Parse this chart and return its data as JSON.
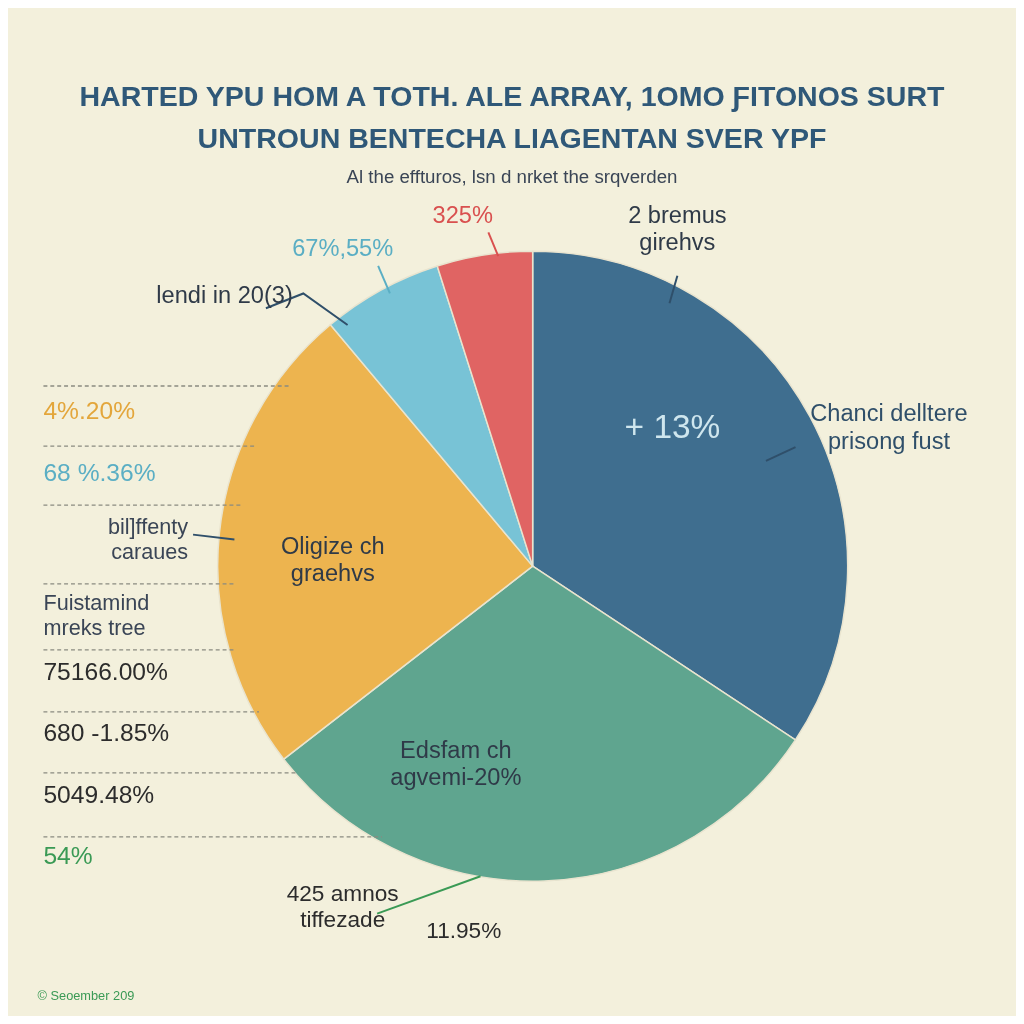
{
  "chart_data": {
    "type": "pie",
    "title": "HARTED YPU HOM A TOTH. ALE ARRAY, 1OMO ƑITONOS SURT UNTROUN BENTECHA LIAGENTAN SVER YPF",
    "subtitle": "Al the effturos, lsn d nrket the srqverden",
    "categories": [
      "2 bremus girehvs",
      "Edsfam ch agvemi-20%",
      "Oligize ch graehvs",
      "lendi in 20(3)",
      null
    ],
    "values": [
      34.3,
      30.2,
      24.4,
      6.2,
      4.9
    ],
    "colors": [
      "#3f6e8f",
      "#5fa58f",
      "#edb44f",
      "#78c3d6",
      "#e06463"
    ],
    "annotations": [
      "Chanci delltere prisong fust",
      "4%.20%",
      "68 %.36%",
      "bil]ffenty caraues",
      "Fuistamind mreks tree",
      "75166.00%",
      "680 -1.85%",
      "5049.48%",
      "54%",
      "425 amnos tiffezade",
      "11.95%",
      "© Seoember 209",
      "+ 13%",
      "67%,55%",
      "325%"
    ]
  }
}
